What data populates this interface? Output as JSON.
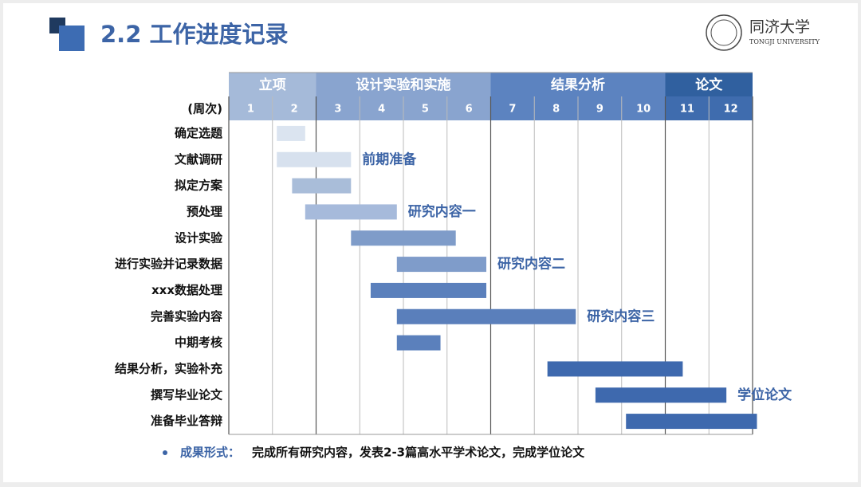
{
  "header": {
    "title": "2.2 工作进度记录",
    "logo_name": "同济大学",
    "logo_subtitle": "TONGJI UNIVERSITY"
  },
  "chart_data": {
    "type": "gantt",
    "week_label": "(周次)",
    "weeks": [
      1,
      2,
      3,
      4,
      5,
      6,
      7,
      8,
      9,
      10,
      11,
      12
    ],
    "xlim": [
      0,
      12
    ],
    "xticks": [
      0,
      1,
      2,
      3,
      4,
      5,
      6,
      7,
      8,
      9,
      10,
      11,
      12
    ],
    "phases": [
      {
        "name": "立项",
        "start": 0,
        "end": 2,
        "color": "#a5bad9",
        "week_color": "#a5bad9"
      },
      {
        "name": "设计实验和实施",
        "start": 2,
        "end": 6,
        "color": "#89a4cf",
        "week_color": "#89a4cf"
      },
      {
        "name": "结果分析",
        "start": 6,
        "end": 10,
        "color": "#5c83c0",
        "week_color": "#5c83c0"
      },
      {
        "name": "论文",
        "start": 10,
        "end": 12,
        "color": "#30609f",
        "week_color": "#3f6cae"
      }
    ],
    "tasks": [
      {
        "name": "确定选题",
        "start": 1.1,
        "end": 1.75,
        "color": "#dbe4f0"
      },
      {
        "name": "文献调研",
        "start": 1.1,
        "end": 2.8,
        "color": "#d7e1ee",
        "note": "前期准备"
      },
      {
        "name": "拟定方案",
        "start": 1.45,
        "end": 2.8,
        "color": "#a9bdd9"
      },
      {
        "name": "预处理",
        "start": 1.75,
        "end": 3.85,
        "color": "#a6badb",
        "note": "研究内容一"
      },
      {
        "name": "设计实验",
        "start": 2.8,
        "end": 5.2,
        "color": "#7f9cc9"
      },
      {
        "name": "进行实验并记录数据",
        "start": 3.85,
        "end": 5.9,
        "color": "#7f9cca",
        "note": "研究内容二"
      },
      {
        "name": "xxx数据处理",
        "start": 3.25,
        "end": 5.9,
        "color": "#5b80bc"
      },
      {
        "name": "完善实验内容",
        "start": 3.85,
        "end": 7.95,
        "color": "#5a7fbb",
        "note": "研究内容三"
      },
      {
        "name": "中期考核",
        "start": 3.85,
        "end": 4.85,
        "color": "#5b80bc"
      },
      {
        "name": "结果分析，实验补充",
        "start": 7.3,
        "end": 10.4,
        "color": "#3e69ae"
      },
      {
        "name": "撰写毕业论文",
        "start": 8.4,
        "end": 11.4,
        "color": "#3e69ae",
        "note": "学位论文"
      },
      {
        "name": "准备毕业答辩",
        "start": 9.1,
        "end": 12.1,
        "color": "#3e69ae"
      }
    ]
  },
  "footer": {
    "label": "成果形式：",
    "text": "完成所有研究内容，发表2-3篇高水平学术论文，完成学位论文"
  }
}
